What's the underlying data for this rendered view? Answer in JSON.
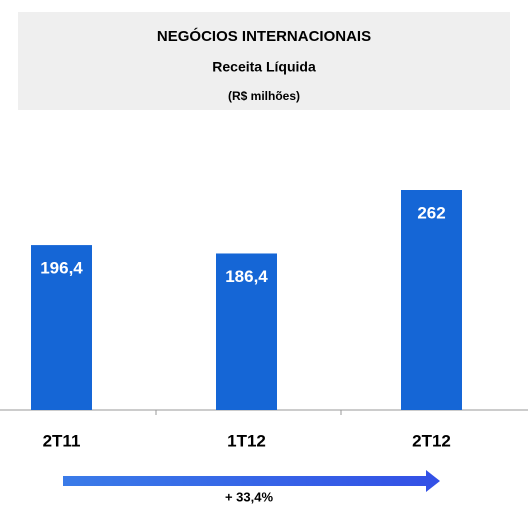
{
  "chart_data": {
    "type": "bar",
    "title": "NEGÓCIOS INTERNACIONAIS",
    "subtitle": "Receita Líquida",
    "unit_label": "(R$ milhões)",
    "categories": [
      "2T11",
      "1T12",
      "2T12"
    ],
    "values": [
      196.4,
      186.4,
      262
    ],
    "value_labels": [
      "196,4",
      "186,4",
      "262"
    ],
    "color": "#1566d6",
    "annotation": "+ 33,4%"
  }
}
